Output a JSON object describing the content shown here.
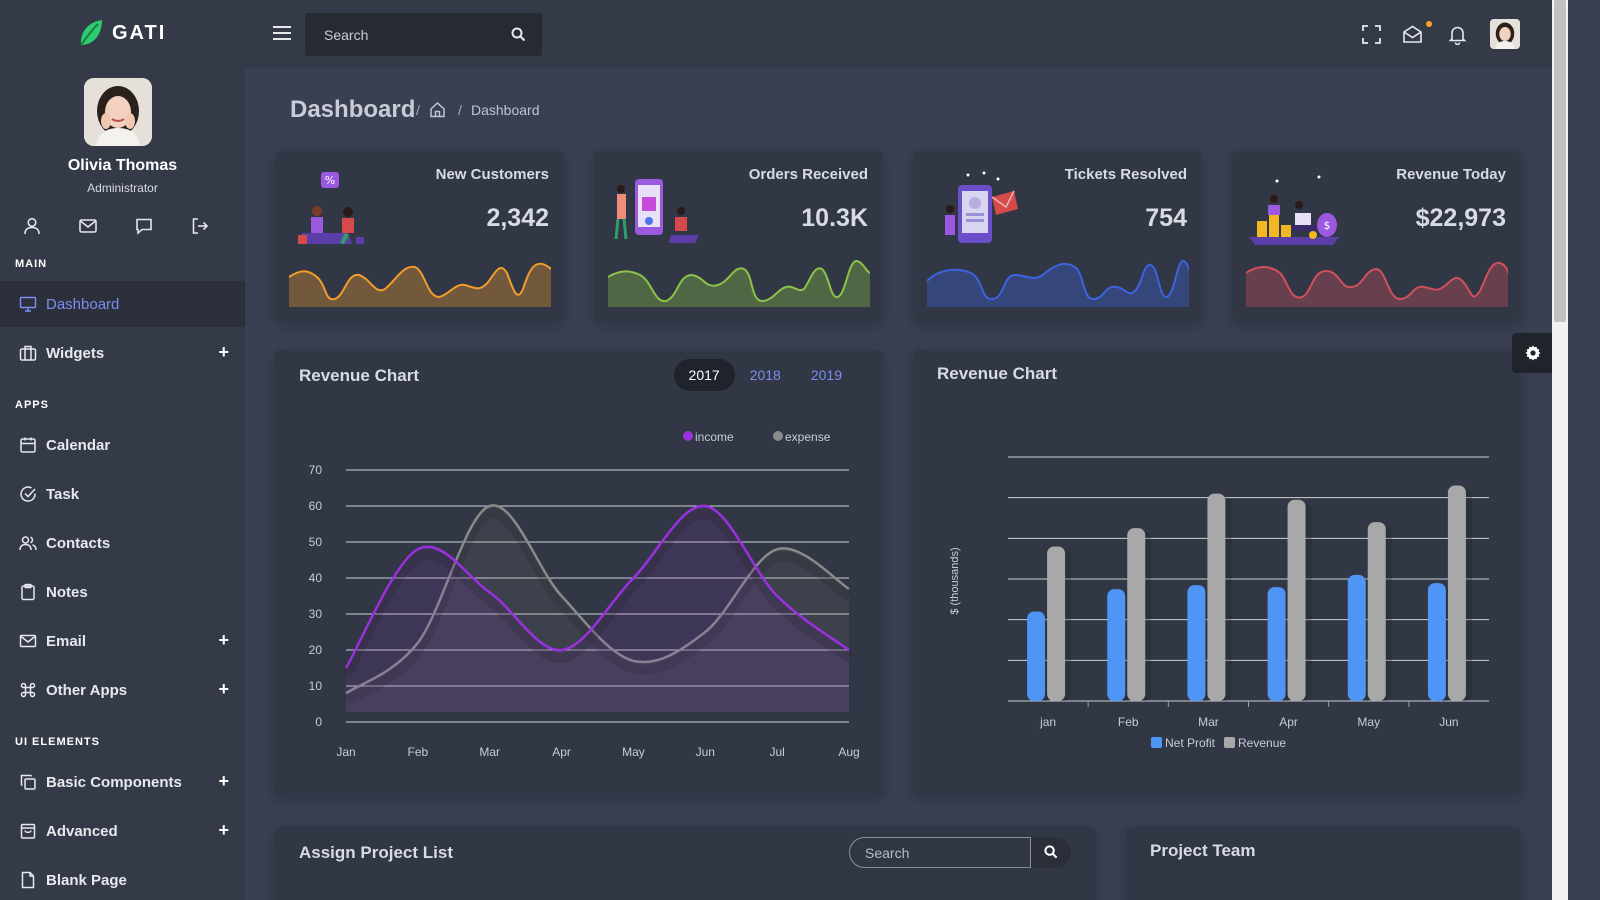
{
  "brand": {
    "name": "GATI"
  },
  "user": {
    "name": "Olivia Thomas",
    "role": "Administrator"
  },
  "search": {
    "placeholder": "Search"
  },
  "sidebar": {
    "sections": [
      {
        "title": "MAIN"
      },
      {
        "title": "APPS"
      },
      {
        "title": "UI ELEMENTS"
      }
    ],
    "items": [
      {
        "label": "Dashboard",
        "active": true
      },
      {
        "label": "Widgets",
        "expandable": true
      },
      {
        "label": "Calendar"
      },
      {
        "label": "Task"
      },
      {
        "label": "Contacts"
      },
      {
        "label": "Notes"
      },
      {
        "label": "Email",
        "expandable": true
      },
      {
        "label": "Other Apps",
        "expandable": true
      },
      {
        "label": "Basic Components",
        "expandable": true
      },
      {
        "label": "Advanced",
        "expandable": true
      },
      {
        "label": "Blank Page"
      }
    ],
    "expand_symbol": "+"
  },
  "breadcrumb": {
    "title": "Dashboard",
    "separator": "/",
    "current": "Dashboard"
  },
  "stats": [
    {
      "title": "New Customers",
      "value": "2,342",
      "color": "#f29c2b"
    },
    {
      "title": "Orders Received",
      "value": "10.3K",
      "color": "#8bc34a"
    },
    {
      "title": "Tickets Resolved",
      "value": "754",
      "color": "#3d63e0"
    },
    {
      "title": "Revenue Today",
      "value": "$22,973",
      "color": "#d0505e"
    }
  ],
  "revenue_line": {
    "title": "Revenue Chart",
    "years": [
      "2017",
      "2018",
      "2019"
    ],
    "active_year": "2017"
  },
  "revenue_bar": {
    "title": "Revenue Chart"
  },
  "assign_list": {
    "title": "Assign Project List",
    "search_placeholder": "Search"
  },
  "project_team": {
    "title": "Project Team"
  },
  "chart_data": [
    {
      "type": "area",
      "categories": [
        "Jan",
        "Feb",
        "Mar",
        "Apr",
        "May",
        "Jun",
        "Jul",
        "Aug"
      ],
      "series": [
        {
          "name": "income",
          "values": [
            15,
            48,
            36,
            20,
            40,
            60,
            35,
            20
          ],
          "color": "#9b30e0"
        },
        {
          "name": "expense",
          "values": [
            8,
            22,
            60,
            35,
            17,
            25,
            48,
            37
          ],
          "color": "#8a8a8a"
        }
      ],
      "ylim": [
        0,
        70
      ],
      "yticks": [
        0,
        10,
        20,
        30,
        40,
        50,
        60,
        70
      ],
      "legend": "top-right",
      "grid": true
    },
    {
      "type": "bar",
      "categories": [
        "jan",
        "Feb",
        "Mar",
        "Apr",
        "May",
        "Jun"
      ],
      "series": [
        {
          "name": "Net Profit",
          "values": [
            44,
            55,
            57,
            56,
            62,
            58
          ],
          "color": "#4f95f5"
        },
        {
          "name": "Revenue",
          "values": [
            76,
            85,
            102,
            99,
            88,
            106
          ],
          "color": "#a8a8a8"
        }
      ],
      "ylabel": "$ (thousands)",
      "ylim": [
        0,
        120
      ],
      "legend": "bottom",
      "grid": true
    }
  ]
}
